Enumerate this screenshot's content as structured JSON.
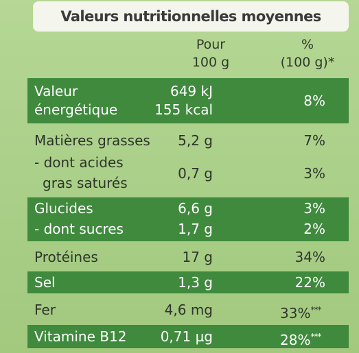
{
  "title": "Valeurs nutritionnelles moyennes",
  "headers": {
    "per_100g_line1": "Pour",
    "per_100g_line2": "100 g",
    "pct_line1": "%",
    "pct_line2": "(100 g)*"
  },
  "rows": [
    {
      "name_line1": "Valeur",
      "name_line2": "énergétique",
      "value_line1": "649 kJ",
      "value_line2": "155 kcal",
      "pct": "8%"
    },
    {
      "name": "Matières grasses",
      "value": "5,2 g",
      "pct": "7%"
    },
    {
      "name_line1": "- dont acides",
      "name_line2": "gras saturés",
      "value": "0,7 g",
      "pct": "3%"
    },
    {
      "name": "Glucides",
      "value": "6,6 g",
      "pct": "3%"
    },
    {
      "name": "- dont sucres",
      "value": "1,7 g",
      "pct": "2%"
    },
    {
      "name": "Protéines",
      "value": "17 g",
      "pct": "34%"
    },
    {
      "name": "Sel",
      "value": "1,3 g",
      "pct": "22%"
    },
    {
      "name": "Fer",
      "value": "4,6 mg",
      "pct": "33%",
      "pct_mark": "***"
    },
    {
      "name": "Vitamine B12",
      "value": "0,71 µg",
      "pct": "28%",
      "pct_mark": "***"
    }
  ],
  "colors": {
    "panel_background": "#a9cf86",
    "highlight_row": "#3f8a3d",
    "title_box": "#f4f6ee"
  }
}
